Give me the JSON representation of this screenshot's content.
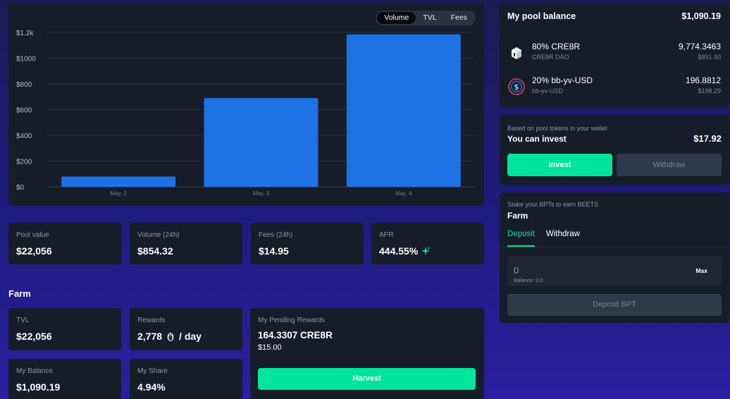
{
  "chart": {
    "toggles": [
      "Volume",
      "TVL",
      "Fees"
    ],
    "active_toggle": "Volume",
    "bar_color": "#1f72e6"
  },
  "chart_data": {
    "type": "bar",
    "categories": [
      "May. 2",
      "May. 3",
      "May. 4"
    ],
    "values": [
      80,
      690,
      1185
    ],
    "y_ticks": [
      "$0",
      "$200",
      "$400",
      "$600",
      "$800",
      "$1000",
      "$1.2k"
    ],
    "ylim": [
      0,
      1200
    ],
    "grid": true
  },
  "pool_stats": [
    {
      "label": "Pool value",
      "value": "$22,056"
    },
    {
      "label": "Volume (24h)",
      "value": "$854.32"
    },
    {
      "label": "Fees (24h)",
      "value": "$14.95"
    },
    {
      "label": "APR",
      "value": "444.55%",
      "icon": "sparkle-icon"
    }
  ],
  "farm": {
    "heading": "Farm",
    "tvl": {
      "label": "TVL",
      "value": "$22,056"
    },
    "rewards": {
      "label": "Rewards",
      "value": "2,778",
      "suffix": "/ day",
      "icon": "beets-token-icon"
    },
    "my_balance": {
      "label": "My Balance",
      "value": "$1,090.19"
    },
    "my_share": {
      "label": "My Share",
      "value": "4.94%"
    },
    "pending": {
      "label": "My Pending Rewards",
      "amount": "164.3307 CRE8R",
      "usd": "$15.00",
      "button": "Harvest"
    }
  },
  "balance": {
    "title": "My pool balance",
    "total": "$1,090.19",
    "tokens": [
      {
        "name": "80% CRE8R",
        "sub": "CRE8R DAO",
        "amount": "9,774.3463",
        "usd": "$891.90",
        "icon": "cre8r-token-icon"
      },
      {
        "name": "20% bb-yv-USD",
        "sub": "bb-yv-USD",
        "amount": "196.8812",
        "usd": "$198.29",
        "icon": "usd-token-icon"
      }
    ]
  },
  "invest": {
    "note": "Based on pool tokens in your wallet",
    "label": "You can invest",
    "amount": "$17.92",
    "invest_button": "Invest",
    "withdraw_button": "Withdraw"
  },
  "stake": {
    "note": "Stake your BPTs to earn BEETS",
    "title": "Farm",
    "tabs": [
      "Deposit",
      "Withdraw"
    ],
    "active_tab": "Deposit",
    "input_value": "0",
    "max_label": "Max",
    "balance_label": "Balance: 0.0",
    "deposit_button": "Deposit BPT"
  },
  "colors": {
    "accent": "#00e59b",
    "card": "#161d29"
  }
}
